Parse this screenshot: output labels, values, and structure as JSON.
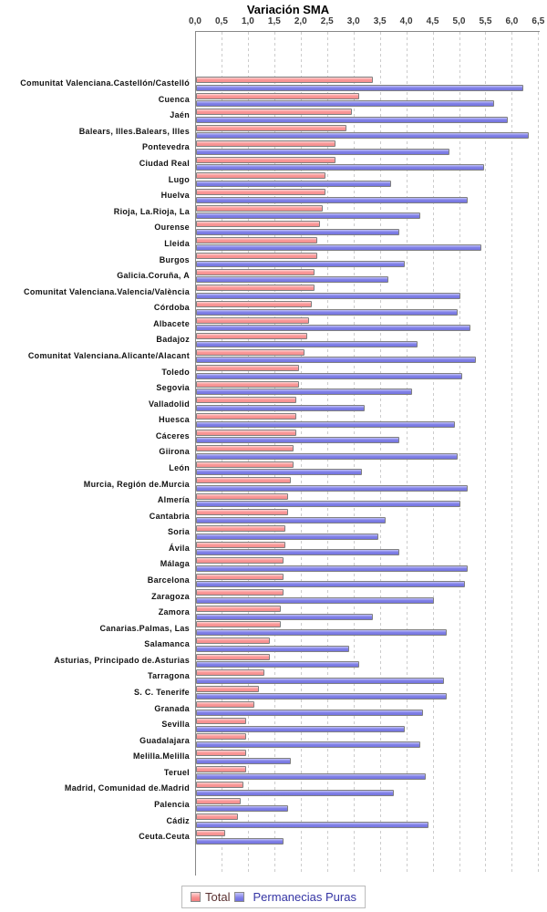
{
  "chart_data": {
    "type": "bar",
    "orientation": "horizontal",
    "title": "Variación SMA",
    "legend_position": "bottom",
    "grid": "dashed-vertical",
    "x_axis": {
      "min": 0,
      "max": 6.5,
      "step": 0.5,
      "tick_labels": [
        "0,0",
        "0,5",
        "1,0",
        "1,5",
        "2,0",
        "2,5",
        "3,0",
        "3,5",
        "4,0",
        "4,5",
        "5,0",
        "5,5",
        "6,0",
        "6,5"
      ]
    },
    "categories": [
      "Comunitat Valenciana.Castellón/Castelló",
      "Cuenca",
      "Jaén",
      "Balears, Illes.Balears, Illes",
      "Pontevedra",
      "Ciudad Real",
      "Lugo",
      "Huelva",
      "Rioja, La.Rioja, La",
      "Ourense",
      "Lleida",
      "Burgos",
      "Galicia.Coruña, A",
      "Comunitat Valenciana.Valencia/València",
      "Córdoba",
      "Albacete",
      "Badajoz",
      "Comunitat Valenciana.Alicante/Alacant",
      "Toledo",
      "Segovia",
      "Valladolid",
      "Huesca",
      "Cáceres",
      "Giirona",
      "León",
      "Murcia, Región de.Murcia",
      "Almería",
      "Cantabria",
      "Soria",
      "Ávila",
      "Málaga",
      "Barcelona",
      "Zaragoza",
      "Zamora",
      "Canarias.Palmas, Las",
      "Salamanca",
      "Asturias, Principado de.Asturias",
      "Tarragona",
      "S. C. Tenerife",
      "Granada",
      "Sevilla",
      "Guadalajara",
      "Melilla.Melilla",
      "Teruel",
      "Madrid, Comunidad de.Madrid",
      "Palencia",
      "Cádiz",
      "Ceuta.Ceuta"
    ],
    "series": [
      {
        "name": "Total",
        "color": "#fa9a9a",
        "values": [
          3.35,
          3.1,
          2.95,
          2.85,
          2.65,
          2.65,
          2.45,
          2.45,
          2.4,
          2.35,
          2.3,
          2.3,
          2.25,
          2.25,
          2.2,
          2.15,
          2.1,
          2.05,
          1.95,
          1.95,
          1.9,
          1.9,
          1.9,
          1.85,
          1.85,
          1.8,
          1.75,
          1.75,
          1.7,
          1.7,
          1.65,
          1.65,
          1.65,
          1.6,
          1.6,
          1.4,
          1.4,
          1.3,
          1.2,
          1.1,
          0.95,
          0.95,
          0.95,
          0.95,
          0.9,
          0.85,
          0.8,
          0.55
        ]
      },
      {
        "name": "Permanecias Puras",
        "color": "#8080e8",
        "values": [
          6.2,
          5.65,
          5.9,
          6.3,
          4.8,
          5.45,
          3.7,
          5.15,
          4.25,
          3.85,
          5.4,
          3.95,
          3.65,
          5.0,
          4.95,
          5.2,
          4.2,
          5.3,
          5.05,
          4.1,
          3.2,
          4.9,
          3.85,
          4.95,
          3.15,
          5.15,
          5.0,
          3.6,
          3.45,
          3.85,
          5.15,
          5.1,
          4.5,
          3.35,
          4.75,
          2.9,
          3.1,
          4.7,
          4.75,
          4.3,
          3.95,
          4.25,
          1.8,
          4.35,
          3.75,
          1.75,
          4.4,
          1.65
        ]
      }
    ]
  }
}
